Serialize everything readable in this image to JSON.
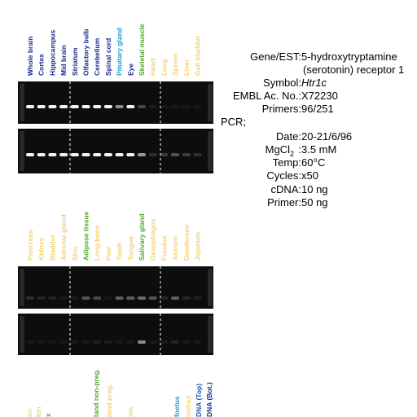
{
  "lanes_top": [
    {
      "label": "Whole brain",
      "color": "#1a2a8c"
    },
    {
      "label": "Cortex",
      "color": "#1a2a8c"
    },
    {
      "label": "Hippocampus",
      "color": "#1a2a8c"
    },
    {
      "label": "Mid brain",
      "color": "#1a2a8c"
    },
    {
      "label": "Striatum",
      "color": "#1a2a8c"
    },
    {
      "label": "Olfactory bulb",
      "color": "#1a2a8c"
    },
    {
      "label": "Cerebellum",
      "color": "#1a2a8c"
    },
    {
      "label": "Spinal cord",
      "color": "#1a2a8c"
    },
    {
      "label": "Pituitary gland",
      "color": "#1aa0d8"
    },
    {
      "label": "Eye",
      "color": "#1a2a8c"
    },
    {
      "label": "Skeletal muscle",
      "color": "#4caa2a"
    },
    {
      "label": "Heart",
      "color": "#f2d27a"
    },
    {
      "label": "Lung",
      "color": "#f2d27a"
    },
    {
      "label": "Spleen",
      "color": "#f2d27a"
    },
    {
      "label": "Liver",
      "color": "#f2d27a"
    },
    {
      "label": "Gall bladder",
      "color": "#f2d27a"
    }
  ],
  "lanes_middle": [
    {
      "label": "Pancreas",
      "color": "#f2d27a"
    },
    {
      "label": "Kidney",
      "color": "#f2d27a"
    },
    {
      "label": "Bladder",
      "color": "#f2d27a"
    },
    {
      "label": "Adrenal gland",
      "color": "#f2d27a"
    },
    {
      "label": "Skin",
      "color": "#f2d27a"
    },
    {
      "label": "Adipose tissue",
      "color": "#4caa2a"
    },
    {
      "label": "Long bone",
      "color": "#f2d27a"
    },
    {
      "label": "Paw",
      "color": "#f2d27a"
    },
    {
      "label": "Teeth",
      "color": "#f2d27a"
    },
    {
      "label": "Tongue",
      "color": "#f2d27a"
    },
    {
      "label": "Salivary gland",
      "color": "#4caa2a"
    },
    {
      "label": "Oesophagus",
      "color": "#f2d27a"
    },
    {
      "label": "Fundus",
      "color": "#f2d27a"
    },
    {
      "label": "Antrum",
      "color": "#f2d27a"
    },
    {
      "label": "Duodenum",
      "color": "#f2d27a"
    },
    {
      "label": "Jejunum",
      "color": "#f2d27a"
    }
  ],
  "lanes_bottom": [
    {
      "label": "on",
      "color": "#f2d27a"
    },
    {
      "label": "lon",
      "color": "#f2d27a"
    },
    {
      "label": "x",
      "color": "#4caa2a"
    },
    {
      "label": "land non-preg.",
      "color": "#4caa2a"
    },
    {
      "label": "land preg.",
      "color": "#f2d27a"
    },
    {
      "label": "nis",
      "color": "#f2d27a"
    },
    {
      "label": "foetus",
      "color": "#1aa0d8"
    },
    {
      "label": "roduct",
      "color": "#f2d27a"
    },
    {
      "label": "DNA (Top)",
      "color": "#1a5ab8"
    },
    {
      "label": "DNA (Bot.)",
      "color": "#1a2a8c"
    }
  ],
  "info": {
    "gene_label": "Gene/EST:",
    "gene_value": [
      "5-hydroxytryptamine",
      "(serotonin) receptor 1"
    ],
    "symbol_label": "Symbol:",
    "symbol_value": "Htr1c",
    "embl_label": "EMBL Ac. No.:",
    "embl_value": "X72230",
    "primers_label": "Primers:",
    "primers_value": "96/251",
    "pcr_label": "PCR;",
    "date_label": "Date:",
    "date_value": "20-21/6/96",
    "mgcl_label": "MgCl",
    "mgcl_sub": "2",
    "mgcl_colon": ":",
    "mgcl_value": "3.5 mM",
    "temp_label": "Temp:",
    "temp_value": "60",
    "temp_sup": "o",
    "temp_unit": "C",
    "cycles_label": "Cycles:",
    "cycles_value": "x50",
    "cdna_label": "cDNA:",
    "cdna_value": "10 ng",
    "primer_label": "Primer:",
    "primer_value": "50 ng"
  }
}
